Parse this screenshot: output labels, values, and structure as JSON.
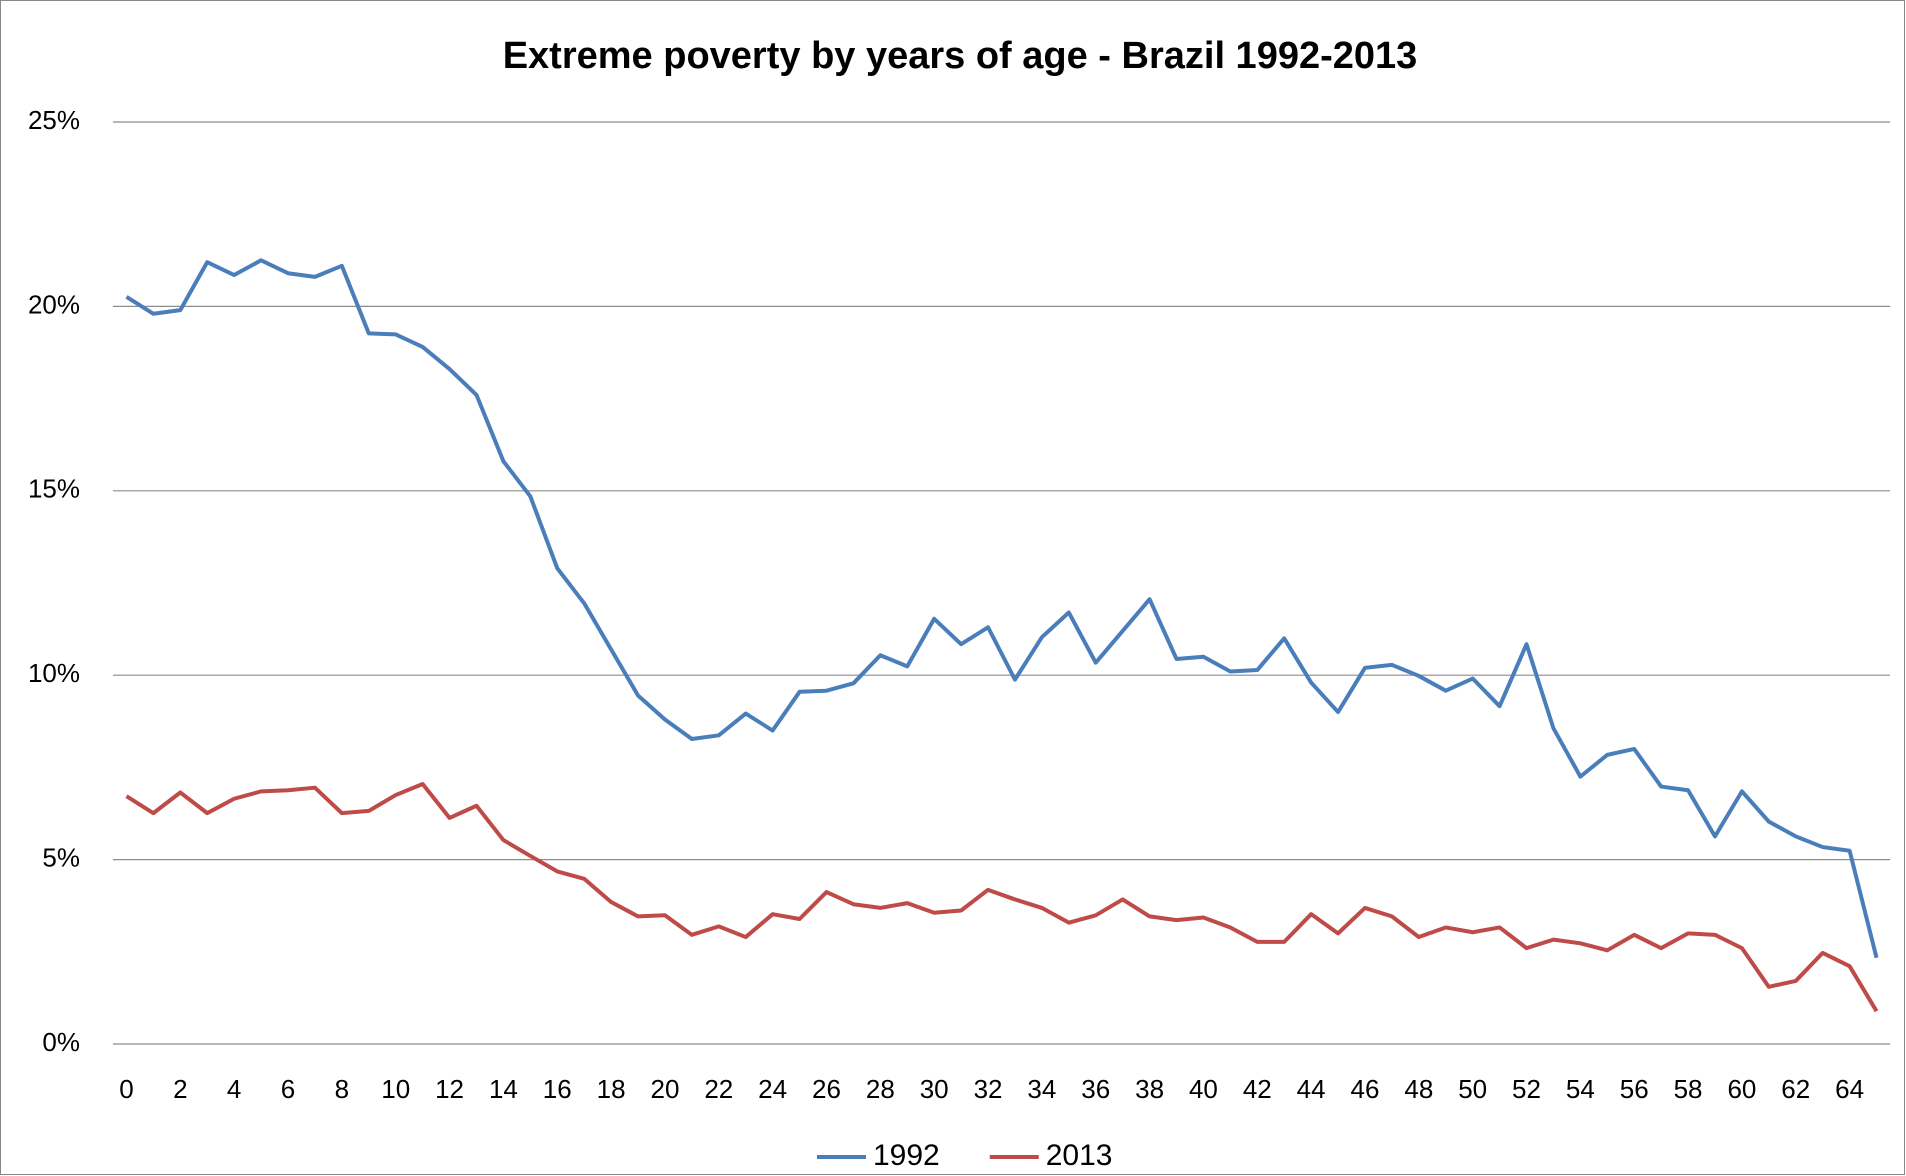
{
  "chart_data": {
    "type": "line",
    "title": "Extreme poverty by years of age - Brazil  1992-2013",
    "categories": [
      "0",
      null,
      "2",
      null,
      "4",
      null,
      "6",
      null,
      "8",
      null,
      "10",
      null,
      "12",
      null,
      "14",
      null,
      "16",
      null,
      "18",
      null,
      "20",
      null,
      "22",
      null,
      "24",
      null,
      "26",
      null,
      "28",
      null,
      "30",
      null,
      "32",
      null,
      "34",
      null,
      "36",
      null,
      "38",
      null,
      "40",
      null,
      "42",
      null,
      "44",
      null,
      "46",
      null,
      "48",
      null,
      "50",
      null,
      "52",
      null,
      "54",
      null,
      "56",
      null,
      "58",
      null,
      "60",
      null,
      "62",
      null,
      "64",
      null
    ],
    "series": [
      {
        "name": "1992",
        "color": "#4a7ebb",
        "values": [
          20.26,
          19.8,
          19.9,
          21.2,
          20.85,
          21.25,
          20.9,
          20.8,
          21.1,
          19.27,
          19.24,
          18.9,
          18.3,
          17.6,
          15.8,
          14.85,
          12.9,
          11.95,
          10.7,
          9.45,
          8.8,
          8.27,
          8.37,
          8.96,
          8.5,
          9.55,
          9.58,
          9.78,
          10.54,
          10.24,
          11.53,
          10.84,
          11.3,
          9.88,
          11.03,
          11.7,
          10.34,
          11.2,
          12.06,
          10.44,
          10.5,
          10.1,
          10.14,
          11.0,
          9.8,
          9.0,
          10.2,
          10.28,
          9.98,
          9.58,
          9.91,
          9.16,
          10.84,
          8.56,
          7.25,
          7.84,
          8.0,
          6.98,
          6.88,
          5.63,
          6.85,
          6.03,
          5.63,
          5.34,
          5.24,
          2.34
        ]
      },
      {
        "name": "2013",
        "color": "#be4b48",
        "values": [
          6.72,
          6.26,
          6.82,
          6.26,
          6.65,
          6.85,
          6.88,
          6.95,
          6.26,
          6.32,
          6.75,
          7.05,
          6.13,
          6.46,
          5.53,
          5.1,
          4.68,
          4.48,
          3.85,
          3.46,
          3.49,
          2.96,
          3.19,
          2.9,
          3.52,
          3.39,
          4.12,
          3.79,
          3.69,
          3.82,
          3.56,
          3.62,
          4.18,
          3.92,
          3.69,
          3.29,
          3.49,
          3.92,
          3.46,
          3.36,
          3.43,
          3.16,
          2.77,
          2.77,
          3.52,
          3.0,
          3.69,
          3.46,
          2.9,
          3.16,
          3.03,
          3.16,
          2.6,
          2.83,
          2.73,
          2.54,
          2.96,
          2.6,
          3.0,
          2.96,
          2.6,
          1.55,
          1.71,
          2.47,
          2.11,
          0.89
        ]
      }
    ],
    "ylim": [
      0,
      25
    ],
    "yticks": [
      {
        "value": 0,
        "label": "0%"
      },
      {
        "value": 5,
        "label": "5%"
      },
      {
        "value": 10,
        "label": "10%"
      },
      {
        "value": 15,
        "label": "15%"
      },
      {
        "value": 20,
        "label": "20%"
      },
      {
        "value": 25,
        "label": "25%"
      }
    ],
    "grid": true,
    "legend": "bottom"
  }
}
